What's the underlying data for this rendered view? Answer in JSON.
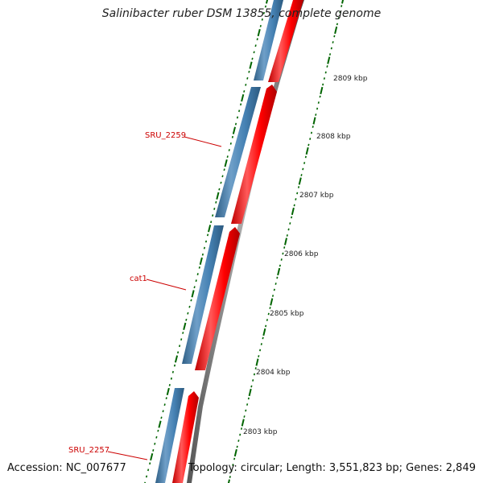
{
  "title": "Salinibacter ruber DSM 13855, complete genome",
  "footer": {
    "accession": "Accession: NC_007677",
    "summary": "Topology: circular; Length: 3,551,823 bp; Genes: 2,849"
  },
  "scale_labels": [
    "2809 kbp",
    "2808 kbp",
    "2807 kbp",
    "2806 kbp",
    "2805 kbp",
    "2804 kbp",
    "2803 kbp"
  ],
  "gene_labels": [
    "SRU_2259",
    "cat1",
    "SRU_2257"
  ],
  "colors": {
    "forward_gene": "#ff0000",
    "reverse_gene": "#4682b4",
    "backbone": "#808080",
    "ticks": "#006400",
    "label": "#cc0000"
  }
}
